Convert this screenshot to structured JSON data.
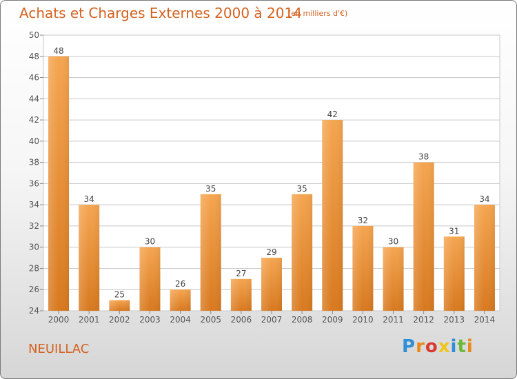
{
  "title": "Achats et Charges Externes 2000 à 2014",
  "subtitle": "(en milliers d'€)",
  "commune": "NEUILLAC",
  "logo": {
    "text": "Proxiti",
    "colors": [
      "#2f8fd6",
      "#e8891a",
      "#d93a2e",
      "#f0c419",
      "#2f8fd6",
      "#6ab838",
      "#e8891a"
    ]
  },
  "colors": {
    "accent": "#d4621f",
    "bar_light": "#f5a550",
    "bar_dark": "#d8791f",
    "grid": "#c8c8c8"
  },
  "chart_data": {
    "type": "bar",
    "title": "Achats et Charges Externes 2000 à 2014",
    "subtitle": "(en milliers d'€)",
    "categories": [
      "2000",
      "2001",
      "2002",
      "2003",
      "2004",
      "2005",
      "2006",
      "2007",
      "2008",
      "2009",
      "2010",
      "2011",
      "2012",
      "2013",
      "2014"
    ],
    "values": [
      48,
      34,
      25,
      30,
      26,
      35,
      27,
      29,
      35,
      42,
      32,
      30,
      38,
      31,
      34
    ],
    "ylim": [
      24,
      50
    ],
    "yticks": [
      24,
      26,
      28,
      30,
      32,
      34,
      36,
      38,
      40,
      42,
      44,
      46,
      48,
      50
    ],
    "grid": true,
    "data_labels": true
  }
}
